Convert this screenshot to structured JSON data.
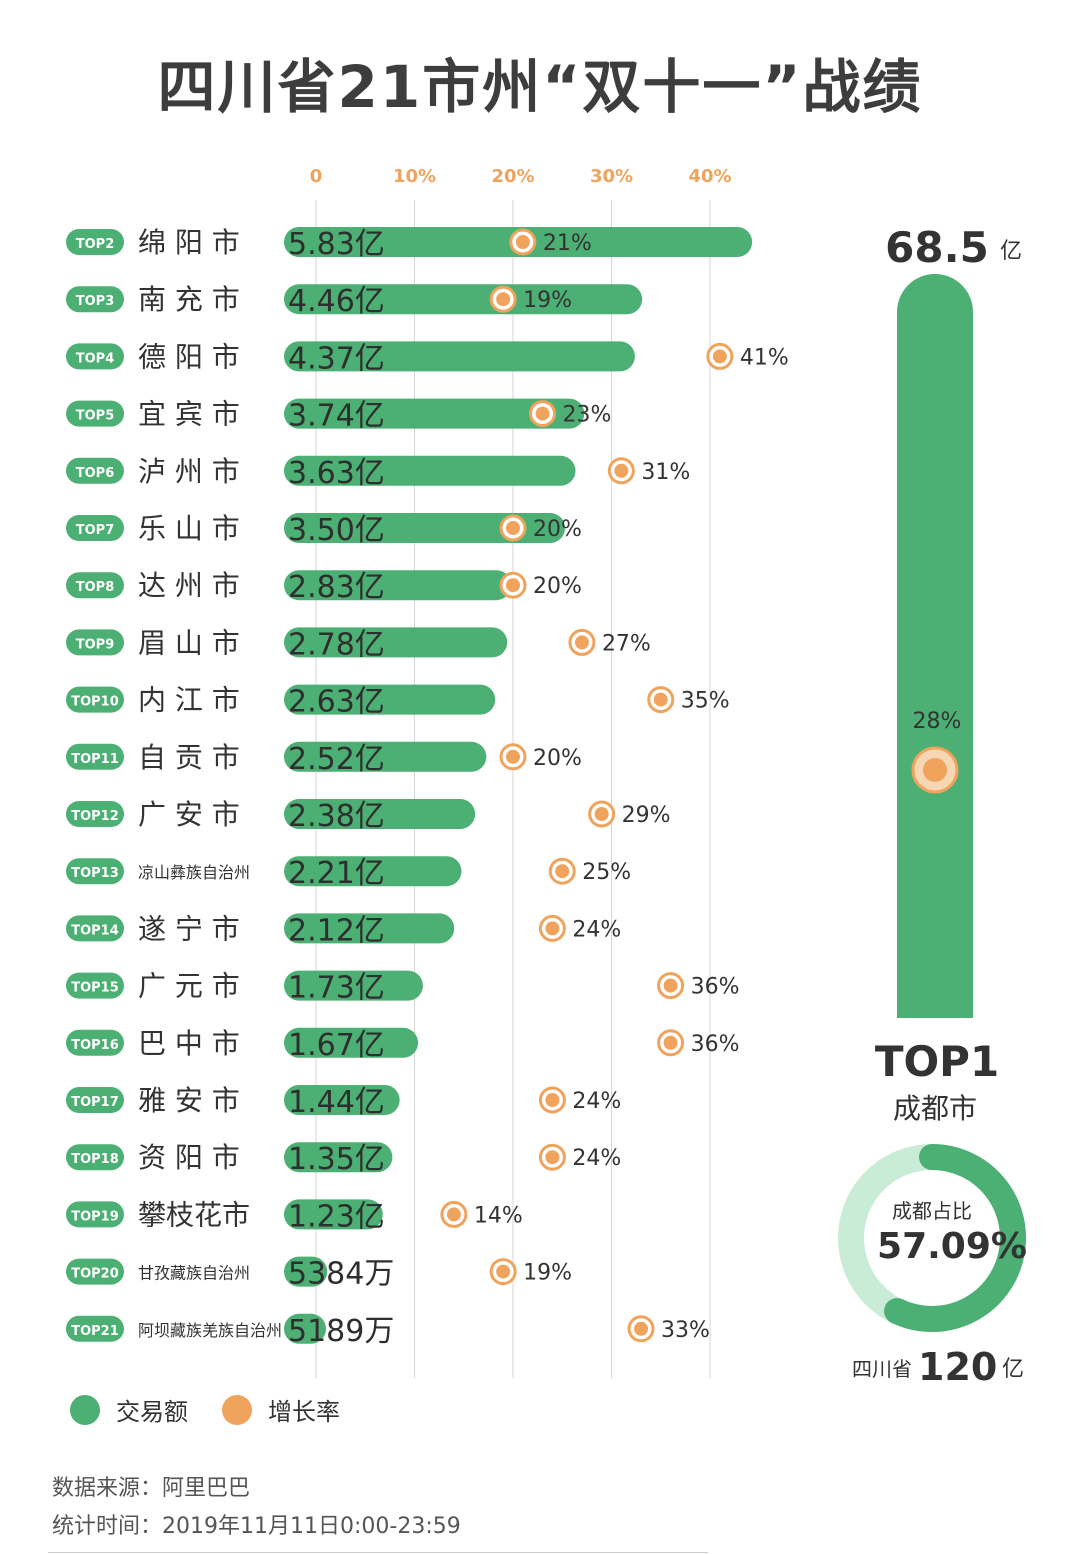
{
  "title": "四川省21市州“双十一”战绩",
  "colors": {
    "green": "#4caf73",
    "orange": "#f0a35c",
    "light_green": "#c8ecd6",
    "tick_orange": "#f0a35c"
  },
  "chart_data": {
    "type": "bar",
    "value_unit": "亿",
    "x_axis_ticks": [
      "0",
      "10%",
      "20%",
      "30%",
      "40%"
    ],
    "x_axis_tick_values": [
      0,
      10,
      20,
      30,
      40
    ],
    "rows": [
      {
        "rank": "TOP2",
        "city": "绵 阳 市",
        "amount": 5.83,
        "amount_label": "5.83亿",
        "growth": 21,
        "growth_label": "21%"
      },
      {
        "rank": "TOP3",
        "city": "南 充 市",
        "amount": 4.46,
        "amount_label": "4.46亿",
        "growth": 19,
        "growth_label": "19%"
      },
      {
        "rank": "TOP4",
        "city": "德 阳 市",
        "amount": 4.37,
        "amount_label": "4.37亿",
        "growth": 41,
        "growth_label": "41%"
      },
      {
        "rank": "TOP5",
        "city": "宜 宾 市",
        "amount": 3.74,
        "amount_label": "3.74亿",
        "growth": 23,
        "growth_label": "23%"
      },
      {
        "rank": "TOP6",
        "city": "泸 州 市",
        "amount": 3.63,
        "amount_label": "3.63亿",
        "growth": 31,
        "growth_label": "31%"
      },
      {
        "rank": "TOP7",
        "city": "乐 山 市",
        "amount": 3.5,
        "amount_label": "3.50亿",
        "growth": 20,
        "growth_label": "20%"
      },
      {
        "rank": "TOP8",
        "city": "达 州 市",
        "amount": 2.83,
        "amount_label": "2.83亿",
        "growth": 20,
        "growth_label": "20%"
      },
      {
        "rank": "TOP9",
        "city": "眉 山 市",
        "amount": 2.78,
        "amount_label": "2.78亿",
        "growth": 27,
        "growth_label": "27%"
      },
      {
        "rank": "TOP10",
        "city": "内 江 市",
        "amount": 2.63,
        "amount_label": "2.63亿",
        "growth": 35,
        "growth_label": "35%"
      },
      {
        "rank": "TOP11",
        "city": "自 贡 市",
        "amount": 2.52,
        "amount_label": "2.52亿",
        "growth": 20,
        "growth_label": "20%"
      },
      {
        "rank": "TOP12",
        "city": "广 安 市",
        "amount": 2.38,
        "amount_label": "2.38亿",
        "growth": 29,
        "growth_label": "29%"
      },
      {
        "rank": "TOP13",
        "city": "凉山彝族自治州",
        "amount": 2.21,
        "amount_label": "2.21亿",
        "growth": 25,
        "growth_label": "25%"
      },
      {
        "rank": "TOP14",
        "city": "遂 宁 市",
        "amount": 2.12,
        "amount_label": "2.12亿",
        "growth": 24,
        "growth_label": "24%"
      },
      {
        "rank": "TOP15",
        "city": "广 元 市",
        "amount": 1.73,
        "amount_label": "1.73亿",
        "growth": 36,
        "growth_label": "36%"
      },
      {
        "rank": "TOP16",
        "city": "巴 中 市",
        "amount": 1.67,
        "amount_label": "1.67亿",
        "growth": 36,
        "growth_label": "36%"
      },
      {
        "rank": "TOP17",
        "city": "雅 安 市",
        "amount": 1.44,
        "amount_label": "1.44亿",
        "growth": 24,
        "growth_label": "24%"
      },
      {
        "rank": "TOP18",
        "city": "资 阳 市",
        "amount": 1.35,
        "amount_label": "1.35亿",
        "growth": 24,
        "growth_label": "24%"
      },
      {
        "rank": "TOP19",
        "city": "攀枝花市",
        "amount": 1.23,
        "amount_label": "1.23亿",
        "growth": 14,
        "growth_label": "14%"
      },
      {
        "rank": "TOP20",
        "city": "甘孜藏族自治州",
        "amount": 0.5384,
        "amount_label": "5384万",
        "growth": 19,
        "growth_label": "19%"
      },
      {
        "rank": "TOP21",
        "city": "阿坝藏族羌族自治州",
        "amount": 0.5189,
        "amount_label": "5189万",
        "growth": 33,
        "growth_label": "33%"
      }
    ],
    "top1": {
      "rank": "TOP1",
      "city": "成都市",
      "amount": 68.5,
      "amount_value": "68.5",
      "amount_unit": "亿",
      "growth": 28,
      "growth_label": "28%"
    },
    "donut": {
      "label": "成都占比",
      "value": 57.09,
      "value_label": "57.09%",
      "total_prefix": "四川省",
      "total_value": "120",
      "total_unit": "亿"
    },
    "legend": [
      {
        "name": "交易额",
        "color": "#4caf73"
      },
      {
        "name": "增长率",
        "color": "#f0a35c"
      }
    ]
  },
  "source": {
    "data_source": "数据来源：阿里巴巴",
    "stat_time": "统计时间：2019年11月11日0:00-23:59"
  }
}
